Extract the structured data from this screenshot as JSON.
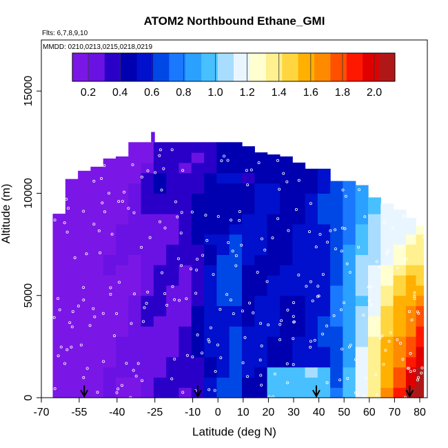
{
  "chart_data": {
    "type": "heatmap",
    "title": "ATOM2 Northbound Ethane_GMI",
    "subtitle_flights": "Flts: 6,7,8,9,10",
    "subtitle_dates": "MMDD: 0210,0213,0215,0218,0219",
    "xlabel": "Latitude (deg N)",
    "ylabel": "Altitude (m)",
    "xlim": [
      -70,
      83
    ],
    "ylim": [
      0,
      17500
    ],
    "x_ticks": [
      -70,
      -55,
      -40,
      -25,
      -10,
      0,
      10,
      20,
      30,
      40,
      50,
      60,
      70,
      80
    ],
    "y_ticks": [
      0,
      5000,
      10000,
      15000
    ],
    "colorbar": {
      "range": [
        0.1,
        2.13
      ],
      "ticks": [
        "0.2",
        "0.4",
        "0.6",
        "0.8",
        "1.0",
        "1.2",
        "1.4",
        "1.6",
        "1.8",
        "2.0"
      ],
      "tick_values": [
        0.2,
        0.4,
        0.6,
        0.8,
        1.0,
        1.2,
        1.4,
        1.6,
        1.8,
        2.0
      ],
      "colors": [
        "#7b17e6",
        "#6a12e3",
        "#2a00c8",
        "#0000b0",
        "#0010cc",
        "#0048e6",
        "#1a78ff",
        "#2aa0ff",
        "#48c0ff",
        "#a8ddff",
        "#eaf6ff",
        "#ffffd0",
        "#fff090",
        "#ffd640",
        "#ffb000",
        "#ff8a00",
        "#ff5000",
        "#ff1800",
        "#e00000",
        "#b01818"
      ]
    },
    "surface_markers_lat": [
      -53,
      -8,
      39,
      76
    ],
    "columns": [
      {
        "lat": -68,
        "top": 8500,
        "c": 0.13
      },
      {
        "lat": -63,
        "top": 9000,
        "c": 0.13
      },
      {
        "lat": -58,
        "top": 10700,
        "c": 0.14
      },
      {
        "lat": -53,
        "top": 11100,
        "c": 0.15
      },
      {
        "lat": -48,
        "top": 11300,
        "c": 0.16
      },
      {
        "lat": -43,
        "top": 11700,
        "c": 0.17
      },
      {
        "lat": -38,
        "top": 11800,
        "c": 0.18
      },
      {
        "lat": -33,
        "top": 12500,
        "c": 0.22
      },
      {
        "lat": -28,
        "top": 12500,
        "c": 0.28
      },
      {
        "lat": -23,
        "top": 12500,
        "c": 0.38
      },
      {
        "lat": -18,
        "top": 12500,
        "c": 0.36
      },
      {
        "lat": -13,
        "top": 12500,
        "c": 0.38
      },
      {
        "lat": -8,
        "top": 12500,
        "c": 0.4
      },
      {
        "lat": -3,
        "top": 12500,
        "c": 0.42
      },
      {
        "lat": 2,
        "top": 12500,
        "c": 0.48
      },
      {
        "lat": 7,
        "top": 12500,
        "c": 0.52
      },
      {
        "lat": 12,
        "top": 12300,
        "c": 0.5
      },
      {
        "lat": 17,
        "top": 12000,
        "c": 0.52
      },
      {
        "lat": 22,
        "top": 11900,
        "c": 0.5
      },
      {
        "lat": 27,
        "top": 11800,
        "c": 0.48
      },
      {
        "lat": 32,
        "top": 11500,
        "c": 0.52
      },
      {
        "lat": 37,
        "top": 11200,
        "c": 0.55
      },
      {
        "lat": 42,
        "top": 11200,
        "c": 0.58
      },
      {
        "lat": 47,
        "top": 10600,
        "c": 0.65
      },
      {
        "lat": 52,
        "top": 10600,
        "c": 0.75
      },
      {
        "lat": 57,
        "top": 10400,
        "c": 0.85
      },
      {
        "lat": 62,
        "top": 9800,
        "c": 0.95
      },
      {
        "lat": 67,
        "top": 9500,
        "c": 1.05
      },
      {
        "lat": 72,
        "top": 9200,
        "c": 1.1
      },
      {
        "lat": 77,
        "top": 8800,
        "c": 1.15
      },
      {
        "lat": 80,
        "top": 8400,
        "c": 1.2
      }
    ],
    "features": [
      {
        "lat": -20,
        "c": 0.32,
        "note": "dark blue band"
      },
      {
        "lat": 5,
        "c": 0.6,
        "note": "light blue band"
      },
      {
        "lat": 60,
        "c": 1.5,
        "note": "yellow"
      },
      {
        "lat": 75,
        "c": 1.9,
        "note": "red surface"
      }
    ]
  }
}
